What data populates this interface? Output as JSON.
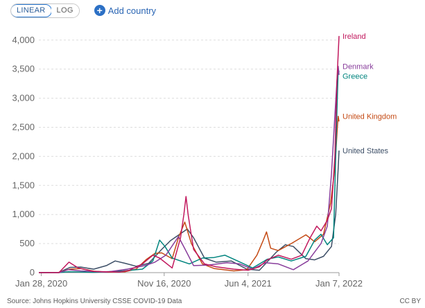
{
  "controls": {
    "linear_label": "LINEAR",
    "log_label": "LOG",
    "add_country_label": "Add country"
  },
  "chart_data": {
    "type": "line",
    "x_start": "2020-01-22",
    "xlim": [
      "2020-01-22",
      "2022-01-07"
    ],
    "ylim": [
      0,
      4200
    ],
    "y_ticks": [
      0,
      500,
      1000,
      1500,
      2000,
      2500,
      3000,
      3500,
      4000
    ],
    "y_tick_labels": [
      "0",
      "500",
      "1,000",
      "1,500",
      "2,000",
      "2,500",
      "3,000",
      "3,500",
      "4,000"
    ],
    "x_ticks": [
      "2020-01-28",
      "2020-11-16",
      "2021-06-04",
      "2022-01-07"
    ],
    "x_tick_labels": [
      "Jan 28, 2020",
      "Nov 16, 2020",
      "Jun 4, 2021",
      "Jan 7, 2022"
    ],
    "grid": "horizontal dashed",
    "series": [
      {
        "name": "Ireland",
        "color": "#c1185d",
        "points": [
          [
            "2020-01-22",
            0
          ],
          [
            "2020-03-10",
            0
          ],
          [
            "2020-04-03",
            180
          ],
          [
            "2020-04-25",
            80
          ],
          [
            "2020-06-01",
            20
          ],
          [
            "2020-08-01",
            10
          ],
          [
            "2020-08-25",
            40
          ],
          [
            "2020-09-25",
            150
          ],
          [
            "2020-10-20",
            300
          ],
          [
            "2020-11-05",
            250
          ],
          [
            "2020-12-05",
            80
          ],
          [
            "2020-12-25",
            600
          ],
          [
            "2021-01-02",
            1000
          ],
          [
            "2021-01-07",
            1310
          ],
          [
            "2021-01-12",
            1000
          ],
          [
            "2021-01-25",
            400
          ],
          [
            "2021-02-20",
            150
          ],
          [
            "2021-03-20",
            100
          ],
          [
            "2021-05-01",
            60
          ],
          [
            "2021-06-04",
            40
          ],
          [
            "2021-07-01",
            100
          ],
          [
            "2021-07-20",
            220
          ],
          [
            "2021-08-15",
            300
          ],
          [
            "2021-09-15",
            230
          ],
          [
            "2021-10-10",
            300
          ],
          [
            "2021-10-30",
            600
          ],
          [
            "2021-11-15",
            800
          ],
          [
            "2021-11-25",
            720
          ],
          [
            "2021-12-10",
            900
          ],
          [
            "2021-12-20",
            1100
          ],
          [
            "2021-12-28",
            2000
          ],
          [
            "2022-01-02",
            3300
          ],
          [
            "2022-01-07",
            4070
          ]
        ]
      },
      {
        "name": "Denmark",
        "color": "#883d9b",
        "points": [
          [
            "2020-01-22",
            0
          ],
          [
            "2020-03-10",
            0
          ],
          [
            "2020-04-01",
            50
          ],
          [
            "2020-05-01",
            30
          ],
          [
            "2020-07-01",
            10
          ],
          [
            "2020-08-20",
            60
          ],
          [
            "2020-10-01",
            120
          ],
          [
            "2020-10-25",
            180
          ],
          [
            "2020-11-20",
            300
          ],
          [
            "2020-12-20",
            620
          ],
          [
            "2021-01-05",
            400
          ],
          [
            "2021-01-25",
            120
          ],
          [
            "2021-03-01",
            130
          ],
          [
            "2021-04-15",
            170
          ],
          [
            "2021-05-15",
            150
          ],
          [
            "2021-06-15",
            60
          ],
          [
            "2021-07-15",
            170
          ],
          [
            "2021-08-15",
            150
          ],
          [
            "2021-09-20",
            50
          ],
          [
            "2021-10-25",
            200
          ],
          [
            "2021-11-25",
            500
          ],
          [
            "2021-12-10",
            800
          ],
          [
            "2021-12-20",
            1700
          ],
          [
            "2021-12-28",
            2700
          ],
          [
            "2022-01-02",
            3300
          ],
          [
            "2022-01-05",
            3550
          ],
          [
            "2022-01-07",
            3400
          ]
        ]
      },
      {
        "name": "Greece",
        "color": "#00847e",
        "points": [
          [
            "2020-01-22",
            0
          ],
          [
            "2020-03-10",
            0
          ],
          [
            "2020-04-01",
            15
          ],
          [
            "2020-06-01",
            5
          ],
          [
            "2020-08-10",
            30
          ],
          [
            "2020-09-25",
            60
          ],
          [
            "2020-10-20",
            200
          ],
          [
            "2020-11-05",
            560
          ],
          [
            "2020-11-18",
            450
          ],
          [
            "2020-12-05",
            250
          ],
          [
            "2021-01-15",
            150
          ],
          [
            "2021-02-15",
            250
          ],
          [
            "2021-03-15",
            260
          ],
          [
            "2021-04-10",
            300
          ],
          [
            "2021-05-10",
            200
          ],
          [
            "2021-06-15",
            80
          ],
          [
            "2021-07-20",
            230
          ],
          [
            "2021-08-15",
            270
          ],
          [
            "2021-09-15",
            200
          ],
          [
            "2021-10-20",
            280
          ],
          [
            "2021-11-10",
            560
          ],
          [
            "2021-11-25",
            660
          ],
          [
            "2021-12-10",
            480
          ],
          [
            "2021-12-25",
            600
          ],
          [
            "2022-01-02",
            2800
          ],
          [
            "2022-01-05",
            3500
          ],
          [
            "2022-01-07",
            3450
          ]
        ]
      },
      {
        "name": "United Kingdom",
        "color": "#c44a14",
        "points": [
          [
            "2020-01-22",
            0
          ],
          [
            "2020-03-10",
            5
          ],
          [
            "2020-04-05",
            60
          ],
          [
            "2020-05-01",
            70
          ],
          [
            "2020-06-01",
            25
          ],
          [
            "2020-07-01",
            8
          ],
          [
            "2020-08-15",
            15
          ],
          [
            "2020-09-10",
            60
          ],
          [
            "2020-10-05",
            230
          ],
          [
            "2020-10-25",
            330
          ],
          [
            "2020-11-10",
            340
          ],
          [
            "2020-12-05",
            240
          ],
          [
            "2020-12-20",
            600
          ],
          [
            "2021-01-04",
            870
          ],
          [
            "2021-01-20",
            500
          ],
          [
            "2021-02-15",
            150
          ],
          [
            "2021-03-15",
            70
          ],
          [
            "2021-05-01",
            30
          ],
          [
            "2021-06-01",
            50
          ],
          [
            "2021-06-25",
            300
          ],
          [
            "2021-07-10",
            550
          ],
          [
            "2021-07-18",
            700
          ],
          [
            "2021-07-28",
            420
          ],
          [
            "2021-08-15",
            380
          ],
          [
            "2021-09-15",
            500
          ],
          [
            "2021-10-20",
            650
          ],
          [
            "2021-11-10",
            530
          ],
          [
            "2021-12-01",
            660
          ],
          [
            "2021-12-18",
            1200
          ],
          [
            "2021-12-28",
            1800
          ],
          [
            "2022-01-03",
            2500
          ],
          [
            "2022-01-05",
            2690
          ],
          [
            "2022-01-07",
            2600
          ]
        ]
      },
      {
        "name": "United States",
        "color": "#3c4e66",
        "points": [
          [
            "2020-01-22",
            0
          ],
          [
            "2020-03-10",
            5
          ],
          [
            "2020-04-05",
            90
          ],
          [
            "2020-05-01",
            95
          ],
          [
            "2020-06-01",
            60
          ],
          [
            "2020-07-01",
            120
          ],
          [
            "2020-07-22",
            200
          ],
          [
            "2020-08-15",
            160
          ],
          [
            "2020-09-10",
            110
          ],
          [
            "2020-10-10",
            160
          ],
          [
            "2020-11-10",
            400
          ],
          [
            "2020-12-01",
            550
          ],
          [
            "2021-01-10",
            750
          ],
          [
            "2021-01-25",
            600
          ],
          [
            "2021-02-20",
            250
          ],
          [
            "2021-03-20",
            180
          ],
          [
            "2021-04-25",
            200
          ],
          [
            "2021-06-01",
            60
          ],
          [
            "2021-07-01",
            40
          ],
          [
            "2021-08-10",
            350
          ],
          [
            "2021-09-01",
            480
          ],
          [
            "2021-09-20",
            450
          ],
          [
            "2021-10-20",
            240
          ],
          [
            "2021-11-10",
            220
          ],
          [
            "2021-12-01",
            280
          ],
          [
            "2021-12-20",
            450
          ],
          [
            "2021-12-30",
            1000
          ],
          [
            "2022-01-05",
            1800
          ],
          [
            "2022-01-07",
            2100
          ]
        ]
      }
    ],
    "labels": [
      {
        "text": "Ireland",
        "series": "Ireland"
      },
      {
        "text": "Denmark",
        "series": "Denmark"
      },
      {
        "text": "Greece",
        "series": "Greece"
      },
      {
        "text": "United Kingdom",
        "series": "United Kingdom"
      },
      {
        "text": "United States",
        "series": "United States"
      }
    ]
  },
  "footer": {
    "source": "Source: Johns Hopkins University CSSE COVID-19 Data",
    "license": "CC BY"
  }
}
